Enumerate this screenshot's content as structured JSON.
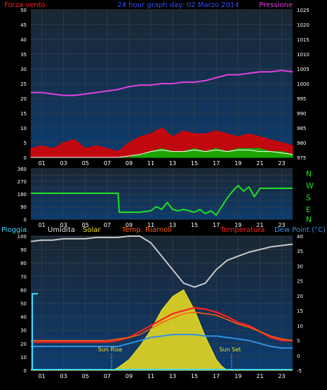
{
  "header": {
    "left_title": "Forza vento",
    "title": "24 hour graph day: 02 Marzo 2014",
    "right_title": "Pressione"
  },
  "direction_labels": [
    "N",
    "W",
    "S",
    "E",
    "N"
  ],
  "bottom_legend": {
    "pioggia": "Pioggia",
    "umidita": "Umidita",
    "solar": "Solar",
    "temp_riarnoli": "Temp. Riarnoli",
    "temperatura": "Temperatura",
    "dew_point": "Dew Point (°C)"
  },
  "annotations": {
    "sun_rise": "Sun Rise",
    "sun_set": "Sun Set"
  },
  "colors": {
    "plot_top": "#1b2632",
    "plot_bottom": "#0c3c70",
    "grid": "#2e3d4d",
    "wind_gust": "#e00000",
    "wind_speed": "#00c000",
    "wind_avg": "#ffffff",
    "pressure": "#e040e0",
    "direction": "#20e020",
    "humidity": "#c8c8c8",
    "solar": "#f0e020",
    "temp": "#ff2020",
    "temp_riarnoli": "#ff6010",
    "dew": "#3090e0",
    "rain": "#40d8ff"
  },
  "chart_data": [
    {
      "type": "line",
      "title": "24 hour graph day: 02 Marzo 2014",
      "x_ticks": [
        "01",
        "03",
        "05",
        "07",
        "09",
        "11",
        "13",
        "15",
        "17",
        "19",
        "21",
        "23"
      ],
      "xlim": [
        0,
        24
      ],
      "ylabel": "Forza vento",
      "ylim": [
        0,
        50
      ],
      "y_ticks": [
        0,
        5,
        10,
        15,
        20,
        25,
        30,
        35,
        40,
        45,
        50
      ],
      "y2label": "Pressione",
      "y2lim": [
        975,
        1025
      ],
      "y2_ticks": [
        975,
        980,
        985,
        990,
        995,
        1000,
        1005,
        1010,
        1015,
        1020,
        1025
      ],
      "series": [
        {
          "name": "Pressione",
          "axis": "right",
          "x": [
            0,
            1,
            2,
            3,
            4,
            5,
            6,
            7,
            8,
            9,
            10,
            11,
            12,
            13,
            14,
            15,
            16,
            17,
            18,
            19,
            20,
            21,
            22,
            23,
            24
          ],
          "values": [
            997,
            997,
            996.5,
            996,
            996,
            996.5,
            997,
            997.5,
            998,
            999,
            999.5,
            999.5,
            1000,
            1000,
            1000.5,
            1000.5,
            1001,
            1002,
            1003,
            1003,
            1003.5,
            1004,
            1004,
            1004.5,
            1004
          ]
        },
        {
          "name": "wind_gust",
          "axis": "left",
          "x": [
            0,
            1,
            2,
            3,
            4,
            5,
            6,
            7,
            8,
            9,
            10,
            11,
            12,
            13,
            14,
            15,
            16,
            17,
            18,
            19,
            20,
            21,
            22,
            23,
            24
          ],
          "values": [
            3,
            4,
            3,
            5,
            6,
            3,
            4,
            3,
            2,
            5,
            7,
            8,
            10,
            7,
            9,
            8,
            8,
            9,
            8,
            7,
            8,
            7,
            6,
            5,
            4
          ]
        },
        {
          "name": "wind_speed",
          "axis": "left",
          "x": [
            0,
            1,
            2,
            3,
            4,
            5,
            6,
            7,
            8,
            9,
            10,
            11,
            12,
            13,
            14,
            15,
            16,
            17,
            18,
            19,
            20,
            21,
            22,
            23,
            24
          ],
          "values": [
            0,
            0,
            0,
            0,
            0,
            0,
            0,
            0,
            0,
            0,
            1,
            2,
            3,
            2,
            2,
            3,
            2,
            3,
            2,
            3,
            3,
            3,
            2,
            2,
            1
          ]
        },
        {
          "name": "wind_avg",
          "axis": "left",
          "x": [
            0,
            1,
            2,
            3,
            4,
            5,
            6,
            7,
            8,
            9,
            10,
            11,
            12,
            13,
            14,
            15,
            16,
            17,
            18,
            19,
            20,
            21,
            22,
            23,
            24
          ],
          "values": [
            0,
            0,
            0,
            0,
            0,
            0,
            0,
            0,
            0,
            0.5,
            1,
            2,
            2.5,
            2,
            2,
            2.5,
            2,
            2.5,
            2,
            2.5,
            2.5,
            2,
            2,
            1.5,
            1
          ]
        }
      ]
    },
    {
      "type": "line",
      "x_ticks": [
        "01",
        "03",
        "05",
        "07",
        "09",
        "11",
        "13",
        "15",
        "17",
        "19",
        "21",
        "23"
      ],
      "xlim": [
        0,
        24
      ],
      "ylim": [
        0,
        360
      ],
      "y_ticks": [
        0,
        45,
        90,
        135,
        180,
        225,
        270,
        315,
        360
      ],
      "y_tick_labels": [
        "0",
        "",
        "90",
        "",
        "180",
        "",
        "270",
        "",
        "360"
      ],
      "series": [
        {
          "name": "direction",
          "x": [
            0,
            8,
            8.1,
            10,
            11,
            11.5,
            12,
            12.5,
            13,
            13.5,
            14,
            14.5,
            15,
            15.5,
            16,
            16.5,
            17,
            17.5,
            18,
            18.5,
            19,
            19.5,
            20,
            20.5,
            21,
            22,
            23,
            24
          ],
          "values": [
            185,
            185,
            50,
            50,
            60,
            90,
            70,
            120,
            70,
            60,
            70,
            60,
            50,
            70,
            40,
            60,
            30,
            90,
            150,
            200,
            240,
            200,
            230,
            160,
            220,
            220,
            220,
            220
          ]
        }
      ]
    },
    {
      "type": "line",
      "x_ticks": [
        "01",
        "03",
        "05",
        "07",
        "09",
        "11",
        "13",
        "15",
        "17",
        "19",
        "21",
        "23"
      ],
      "xlim": [
        0,
        24
      ],
      "ylim": [
        0,
        100
      ],
      "y_ticks": [
        0,
        10,
        20,
        30,
        40,
        50,
        60,
        70,
        80,
        90,
        100
      ],
      "y2lim": [
        -5,
        40
      ],
      "y2_ticks": [
        -5,
        0,
        5,
        10,
        15,
        20,
        25,
        30,
        35,
        40
      ],
      "series": [
        {
          "name": "Umidita",
          "axis": "left",
          "x": [
            0,
            1,
            2,
            3,
            4,
            5,
            6,
            7,
            8,
            9,
            10,
            11,
            12,
            13,
            14,
            15,
            16,
            17,
            18,
            19,
            20,
            21,
            22,
            23,
            24
          ],
          "values": [
            96,
            97,
            97,
            98,
            98,
            98,
            99,
            99,
            99,
            100,
            100,
            95,
            85,
            75,
            65,
            62,
            65,
            75,
            82,
            85,
            88,
            90,
            92,
            93,
            94
          ]
        },
        {
          "name": "Solar",
          "axis": "left",
          "x": [
            0,
            7.5,
            8,
            9,
            10,
            11,
            12,
            13,
            14,
            15,
            16,
            17,
            17.5,
            18,
            24
          ],
          "values": [
            0,
            0,
            2,
            8,
            18,
            30,
            45,
            55,
            60,
            45,
            25,
            8,
            3,
            0,
            0
          ]
        },
        {
          "name": "Temperatura",
          "axis": "right",
          "x": [
            0,
            1,
            2,
            3,
            4,
            5,
            6,
            7,
            8,
            9,
            10,
            11,
            12,
            13,
            14,
            15,
            16,
            17,
            18,
            19,
            20,
            21,
            22,
            23,
            24
          ],
          "values": [
            4.5,
            4.5,
            4.5,
            4.5,
            4.5,
            4.5,
            4.5,
            4.5,
            5,
            6,
            8,
            10,
            12,
            14,
            15,
            16,
            15.5,
            14.5,
            13,
            11,
            10,
            8,
            6,
            5,
            5
          ]
        },
        {
          "name": "Temp. Riarnoli",
          "axis": "right",
          "x": [
            0,
            1,
            2,
            3,
            4,
            5,
            6,
            7,
            8,
            9,
            10,
            11,
            12,
            13,
            14,
            15,
            16,
            17,
            18,
            19,
            20,
            21,
            22,
            23,
            24
          ],
          "values": [
            5,
            5,
            5,
            5,
            5,
            5,
            5,
            5,
            5.5,
            6,
            7,
            9,
            11,
            12.5,
            14,
            14.5,
            14,
            13.5,
            12,
            10.5,
            9.5,
            8,
            6.5,
            5.5,
            5
          ]
        },
        {
          "name": "Dew Point (°C)",
          "axis": "right",
          "x": [
            0,
            1,
            2,
            3,
            4,
            5,
            6,
            7,
            8,
            9,
            10,
            11,
            12,
            13,
            14,
            15,
            16,
            17,
            18,
            19,
            20,
            21,
            22,
            23,
            24
          ],
          "values": [
            3,
            3,
            3,
            3,
            3,
            3,
            3,
            3,
            3,
            4,
            5,
            6,
            6.5,
            7,
            7,
            7,
            6.5,
            6.5,
            6,
            5.5,
            5,
            4,
            3,
            2.5,
            2.5
          ]
        },
        {
          "name": "Pioggia",
          "axis": "left",
          "x": [
            0,
            0.1,
            24
          ],
          "values": [
            57,
            0,
            0
          ]
        }
      ]
    }
  ]
}
